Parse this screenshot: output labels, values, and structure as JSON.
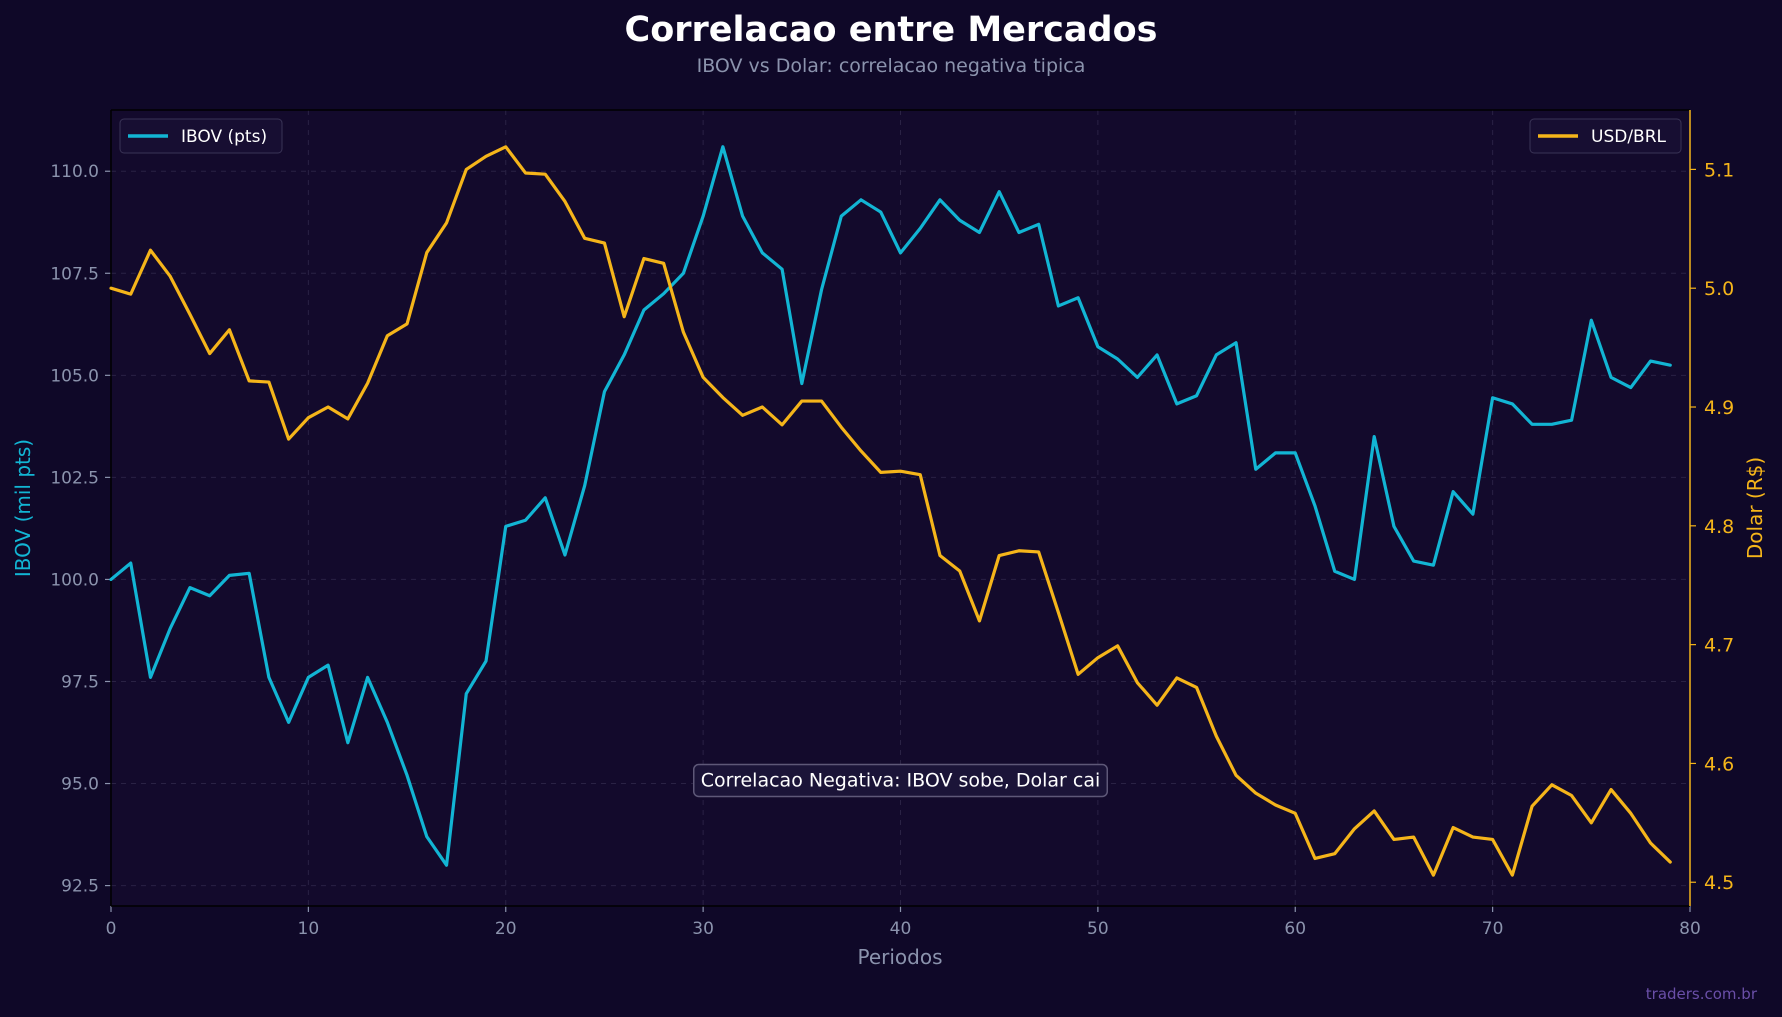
{
  "chart_data": {
    "type": "line",
    "title": "Correlacao entre Mercados",
    "subtitle": "IBOV vs Dolar: correlacao negativa tipica",
    "xlabel": "Periodos",
    "ylabel_left": "IBOV (mil pts)",
    "ylabel_right": "Dolar (R$)",
    "xlim": [
      0,
      80
    ],
    "ylim_left": [
      92,
      111.5
    ],
    "ylim_right": [
      4.48,
      5.15
    ],
    "x_ticks": [
      "0",
      "10",
      "20",
      "30",
      "40",
      "50",
      "60",
      "70",
      "80"
    ],
    "y_ticks_left": [
      "92.5",
      "95.0",
      "97.5",
      "100.0",
      "102.5",
      "105.0",
      "107.5",
      "110.0"
    ],
    "y_ticks_right": [
      "4.5",
      "4.6",
      "4.7",
      "4.8",
      "4.9",
      "5.0",
      "5.1"
    ],
    "grid": true,
    "x": [
      0,
      1,
      2,
      3,
      4,
      5,
      6,
      7,
      8,
      9,
      10,
      11,
      12,
      13,
      14,
      15,
      16,
      17,
      18,
      19,
      20,
      21,
      22,
      23,
      24,
      25,
      26,
      27,
      28,
      29,
      30,
      31,
      32,
      33,
      34,
      35,
      36,
      37,
      38,
      39,
      40,
      41,
      42,
      43,
      44,
      45,
      46,
      47,
      48,
      49,
      50,
      51,
      52,
      53,
      54,
      55,
      56,
      57,
      58,
      59,
      60,
      61,
      62,
      63,
      64,
      65,
      66,
      67,
      68,
      69,
      70,
      71,
      72,
      73,
      74,
      75,
      76,
      77,
      78,
      79
    ],
    "series": [
      {
        "name": "IBOV (pts)",
        "axis": "left",
        "color": "#12b5d4",
        "values": [
          100.0,
          100.4,
          97.6,
          98.8,
          99.8,
          99.6,
          100.1,
          100.15,
          97.6,
          96.5,
          97.6,
          97.9,
          96.0,
          97.6,
          96.5,
          95.2,
          93.7,
          93.0,
          97.2,
          98.0,
          101.3,
          101.45,
          102.0,
          100.6,
          102.3,
          104.6,
          105.5,
          106.6,
          107.0,
          107.5,
          108.9,
          110.6,
          108.9,
          108.0,
          107.6,
          104.8,
          107.1,
          108.9,
          109.3,
          109.0,
          108.0,
          108.6,
          109.3,
          108.8,
          108.5,
          109.5,
          108.5,
          108.7,
          106.7,
          106.9,
          105.7,
          105.4,
          104.95,
          105.5,
          104.3,
          104.5,
          105.5,
          105.8,
          102.7,
          103.1,
          103.1,
          101.8,
          100.2,
          100.0,
          103.5,
          101.3,
          100.45,
          100.35,
          102.15,
          101.6,
          104.45,
          104.3,
          103.8,
          103.8,
          103.9,
          106.35,
          104.95,
          104.7,
          105.35,
          105.25
        ]
      },
      {
        "name": "USD/BRL",
        "axis": "right",
        "color": "#f5b51a",
        "values": [
          5.0,
          4.995,
          5.032,
          5.01,
          4.978,
          4.945,
          4.965,
          4.922,
          4.921,
          4.873,
          4.891,
          4.9,
          4.89,
          4.92,
          4.96,
          4.97,
          5.03,
          5.055,
          5.1,
          5.111,
          5.119,
          5.097,
          5.096,
          5.073,
          5.042,
          5.038,
          4.976,
          5.025,
          5.021,
          4.963,
          4.925,
          4.908,
          4.893,
          4.9,
          4.885,
          4.905,
          4.905,
          4.883,
          4.863,
          4.845,
          4.846,
          4.843,
          4.775,
          4.762,
          4.72,
          4.775,
          4.779,
          4.778,
          4.727,
          4.675,
          4.689,
          4.699,
          4.668,
          4.649,
          4.672,
          4.664,
          4.623,
          4.59,
          4.575,
          4.565,
          4.558,
          4.52,
          4.524,
          4.545,
          4.56,
          4.536,
          4.538,
          4.506,
          4.546,
          4.538,
          4.536,
          4.506,
          4.564,
          4.582,
          4.573,
          4.55,
          4.578,
          4.558,
          4.533,
          4.517
        ]
      }
    ],
    "legends": [
      {
        "label": "IBOV (pts)",
        "position": "top-left"
      },
      {
        "label": "USD/BRL",
        "position": "top-right"
      }
    ],
    "annotation": {
      "text": "Correlacao Negativa: IBOV sobe, Dolar cai",
      "x": 40,
      "y": 95.1
    }
  },
  "footer": {
    "watermark": "traders.com.br"
  },
  "colors": {
    "background": "#0f0828",
    "plot_background": "#130a2c",
    "ibov": "#12b5d4",
    "usd": "#f5b51a",
    "text_muted": "#8b93ad"
  }
}
